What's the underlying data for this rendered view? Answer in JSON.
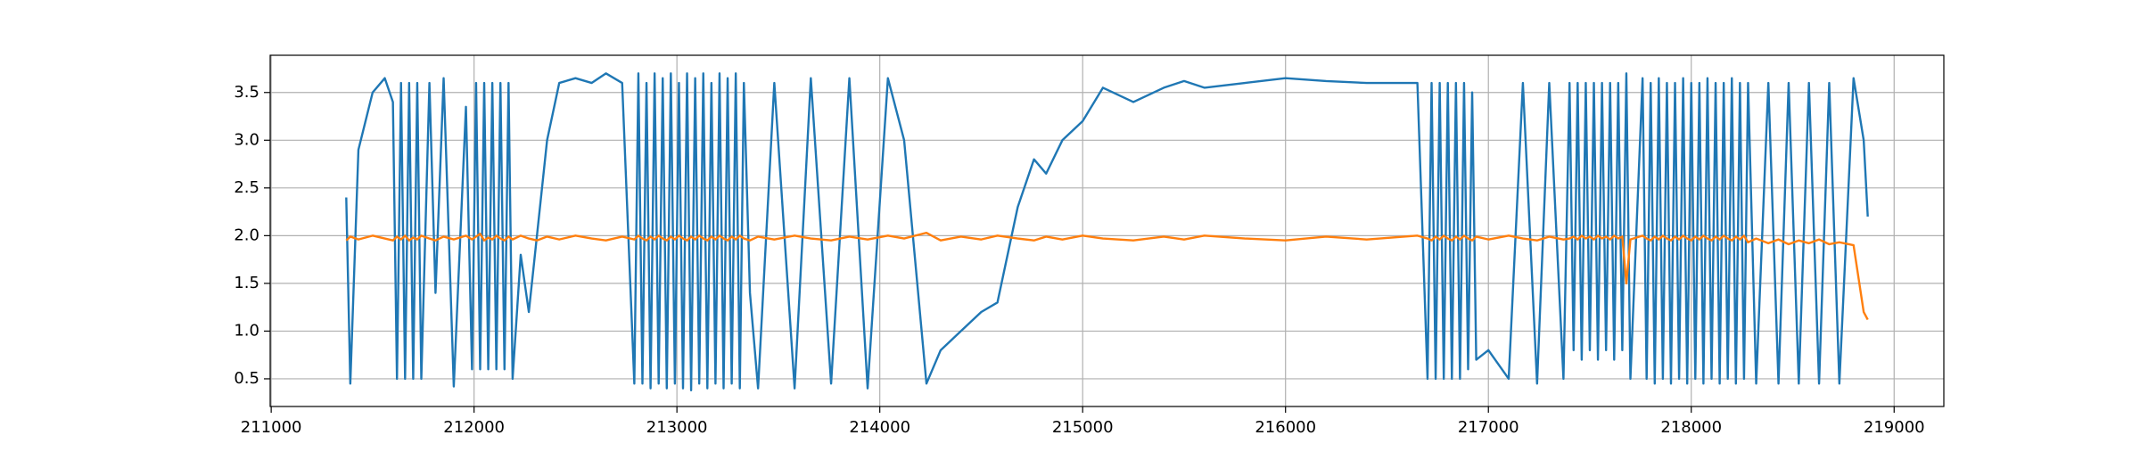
{
  "chart_data": {
    "type": "line",
    "x": [
      211370,
      211390,
      211430,
      211500,
      211560,
      211600,
      211620,
      211640,
      211660,
      211680,
      211700,
      211720,
      211740,
      211780,
      211810,
      211850,
      211900,
      211960,
      211990,
      212010,
      212030,
      212050,
      212070,
      212090,
      212110,
      212130,
      212150,
      212170,
      212190,
      212230,
      212270,
      212310,
      212360,
      212420,
      212500,
      212580,
      212650,
      212730,
      212790,
      212810,
      212830,
      212850,
      212870,
      212890,
      212910,
      212930,
      212950,
      212970,
      212990,
      213010,
      213030,
      213050,
      213070,
      213090,
      213110,
      213130,
      213150,
      213170,
      213190,
      213210,
      213230,
      213250,
      213270,
      213290,
      213310,
      213330,
      213360,
      213400,
      213480,
      213580,
      213660,
      213760,
      213850,
      213940,
      214040,
      214120,
      214230,
      214300,
      214400,
      214500,
      214580,
      214680,
      214760,
      214820,
      214900,
      215000,
      215100,
      215250,
      215400,
      215500,
      215600,
      215800,
      216000,
      216200,
      216400,
      216650,
      216700,
      216720,
      216740,
      216760,
      216780,
      216800,
      216820,
      216840,
      216860,
      216880,
      216900,
      216920,
      216940,
      217000,
      217100,
      217170,
      217240,
      217300,
      217370,
      217400,
      217420,
      217440,
      217460,
      217480,
      217500,
      217520,
      217540,
      217560,
      217580,
      217600,
      217620,
      217640,
      217660,
      217680,
      217700,
      217760,
      217780,
      217800,
      217820,
      217840,
      217860,
      217880,
      217900,
      217920,
      217940,
      217960,
      217980,
      218000,
      218020,
      218040,
      218060,
      218080,
      218100,
      218120,
      218140,
      218160,
      218180,
      218200,
      218220,
      218240,
      218260,
      218280,
      218320,
      218380,
      218430,
      218480,
      218530,
      218580,
      218630,
      218680,
      218730,
      218800,
      218850,
      218870
    ],
    "series": [
      {
        "color": "#1f77b4",
        "values": [
          2.4,
          0.45,
          2.9,
          3.5,
          3.65,
          3.4,
          0.5,
          3.6,
          0.5,
          3.6,
          0.5,
          3.6,
          0.5,
          3.6,
          1.4,
          3.65,
          0.42,
          3.35,
          0.6,
          3.6,
          0.6,
          3.6,
          0.6,
          3.6,
          0.6,
          3.6,
          0.6,
          3.6,
          0.5,
          1.8,
          1.2,
          2.0,
          3.0,
          3.6,
          3.65,
          3.6,
          3.7,
          3.6,
          0.45,
          3.7,
          0.45,
          3.6,
          0.4,
          3.7,
          0.45,
          3.65,
          0.4,
          3.7,
          0.45,
          3.6,
          0.4,
          3.7,
          0.38,
          3.65,
          0.45,
          3.7,
          0.4,
          3.6,
          0.45,
          3.7,
          0.4,
          3.65,
          0.45,
          3.7,
          0.4,
          3.6,
          1.4,
          0.4,
          3.6,
          0.4,
          3.65,
          0.45,
          3.65,
          0.4,
          3.65,
          3.0,
          0.45,
          0.8,
          1.0,
          1.2,
          1.3,
          2.3,
          2.8,
          2.65,
          3.0,
          3.2,
          3.55,
          3.4,
          3.55,
          3.62,
          3.55,
          3.6,
          3.65,
          3.62,
          3.6,
          3.6,
          0.5,
          3.6,
          0.5,
          3.6,
          0.5,
          3.6,
          0.5,
          3.6,
          0.5,
          3.6,
          0.6,
          3.5,
          0.7,
          0.8,
          0.5,
          3.6,
          0.45,
          3.6,
          0.5,
          3.6,
          0.8,
          3.6,
          0.7,
          3.6,
          0.8,
          3.6,
          0.7,
          3.6,
          0.8,
          3.6,
          0.7,
          3.6,
          0.8,
          3.7,
          0.5,
          3.65,
          0.5,
          3.6,
          0.45,
          3.65,
          0.5,
          3.6,
          0.45,
          3.6,
          0.5,
          3.65,
          0.45,
          3.6,
          0.5,
          3.6,
          0.45,
          3.65,
          0.5,
          3.6,
          0.45,
          3.6,
          0.5,
          3.65,
          0.45,
          3.6,
          0.5,
          3.6,
          0.45,
          3.6,
          0.45,
          3.6,
          0.45,
          3.6,
          0.45,
          3.6,
          0.45,
          3.65,
          3.0,
          2.2
        ]
      },
      {
        "color": "#ff7f0e",
        "values": [
          1.95,
          1.99,
          1.96,
          2.0,
          1.97,
          1.95,
          1.99,
          1.96,
          2.0,
          1.95,
          1.98,
          1.96,
          2.0,
          1.97,
          1.95,
          1.99,
          1.96,
          2.0,
          1.96,
          1.99,
          2.02,
          1.95,
          1.98,
          1.96,
          2.0,
          1.97,
          1.95,
          1.99,
          1.96,
          2.0,
          1.97,
          1.95,
          1.99,
          1.96,
          2.0,
          1.97,
          1.95,
          1.99,
          1.96,
          2.0,
          1.97,
          1.95,
          1.99,
          1.96,
          2.0,
          1.97,
          1.95,
          1.99,
          1.96,
          2.0,
          1.97,
          1.95,
          1.99,
          1.96,
          2.0,
          1.97,
          1.95,
          1.99,
          1.96,
          2.0,
          1.97,
          1.95,
          1.99,
          1.96,
          2.0,
          1.97,
          1.95,
          1.99,
          1.96,
          2.0,
          1.97,
          1.95,
          1.99,
          1.96,
          2.0,
          1.97,
          2.03,
          1.95,
          1.99,
          1.96,
          2.0,
          1.97,
          1.95,
          1.99,
          1.96,
          2.0,
          1.97,
          1.95,
          1.99,
          1.96,
          2.0,
          1.97,
          1.95,
          1.99,
          1.96,
          2.0,
          1.97,
          1.95,
          1.99,
          1.96,
          2.0,
          1.97,
          1.95,
          1.99,
          1.96,
          2.0,
          1.97,
          1.95,
          1.99,
          1.96,
          2.0,
          1.97,
          1.95,
          1.99,
          1.96,
          1.97,
          1.99,
          1.96,
          2.0,
          1.97,
          1.99,
          1.96,
          2.0,
          1.97,
          1.99,
          1.96,
          2.0,
          1.97,
          1.99,
          1.5,
          1.96,
          2.0,
          1.97,
          1.95,
          1.99,
          1.96,
          2.0,
          1.97,
          1.95,
          1.99,
          1.96,
          2.0,
          1.97,
          1.95,
          1.99,
          1.96,
          2.0,
          1.97,
          1.95,
          1.99,
          1.96,
          2.0,
          1.97,
          1.95,
          1.99,
          1.96,
          2.0,
          1.93,
          1.97,
          1.92,
          1.96,
          1.91,
          1.95,
          1.92,
          1.96,
          1.91,
          1.93,
          1.9,
          1.2,
          1.12
        ]
      }
    ],
    "xlim": [
      210995,
      219245
    ],
    "ylim": [
      0.21,
      3.89
    ],
    "xticks": [
      211000,
      212000,
      213000,
      214000,
      215000,
      216000,
      217000,
      218000,
      219000
    ],
    "yticks": [
      0.5,
      {
        "value": 1,
        "label": "1.0"
      },
      1.5,
      {
        "value": 2,
        "label": "2.0"
      },
      2.5,
      {
        "value": 3,
        "label": "3.0"
      },
      3.5
    ],
    "grid": true
  }
}
